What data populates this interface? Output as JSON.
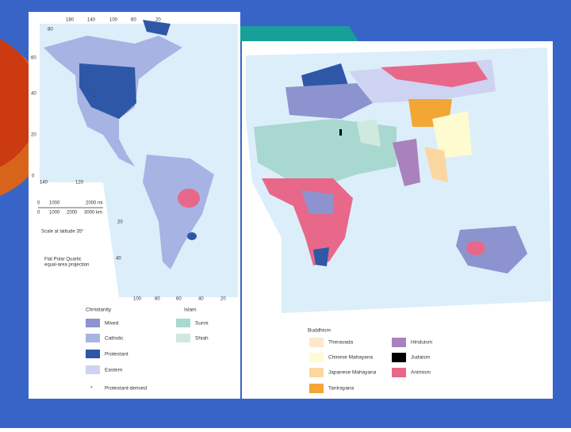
{
  "left_map": {
    "top_longitudes": [
      "180",
      "140",
      "100",
      "60",
      "20"
    ],
    "corner_latitude": "80",
    "latitudes": [
      "60",
      "40",
      "20",
      "0"
    ],
    "bottom_longitudes": [
      "140",
      "120"
    ],
    "south_longitudes": [
      "100",
      "80",
      "60",
      "40",
      "20"
    ],
    "south_latitudes": [
      "20",
      "40"
    ],
    "scale": {
      "miles": [
        "0",
        "1000",
        "2000 mi"
      ],
      "kilometers": [
        "0",
        "1000",
        "2000",
        "3000 km"
      ],
      "note": "Scale at latitude 35°"
    },
    "projection": [
      "Flat Polar Quartic",
      "equal-area projection"
    ]
  },
  "legend": {
    "christianity": {
      "heading": "Christianity",
      "items": [
        "Mixed",
        "Catholic",
        "Protestant",
        "Eastern",
        "Protestant-derived"
      ]
    },
    "islam": {
      "heading": "Islam",
      "items": [
        "Sunni",
        "Shiah"
      ]
    },
    "buddhism": {
      "heading": "Buddhism",
      "items": [
        "Theravada",
        "Chinese Mahayana",
        "Japanese Mahayana",
        "Tantrayana"
      ]
    },
    "other": {
      "items": [
        "Hinduism",
        "Judaism",
        "Animism"
      ]
    },
    "protestant_derived_symbol": "*"
  }
}
